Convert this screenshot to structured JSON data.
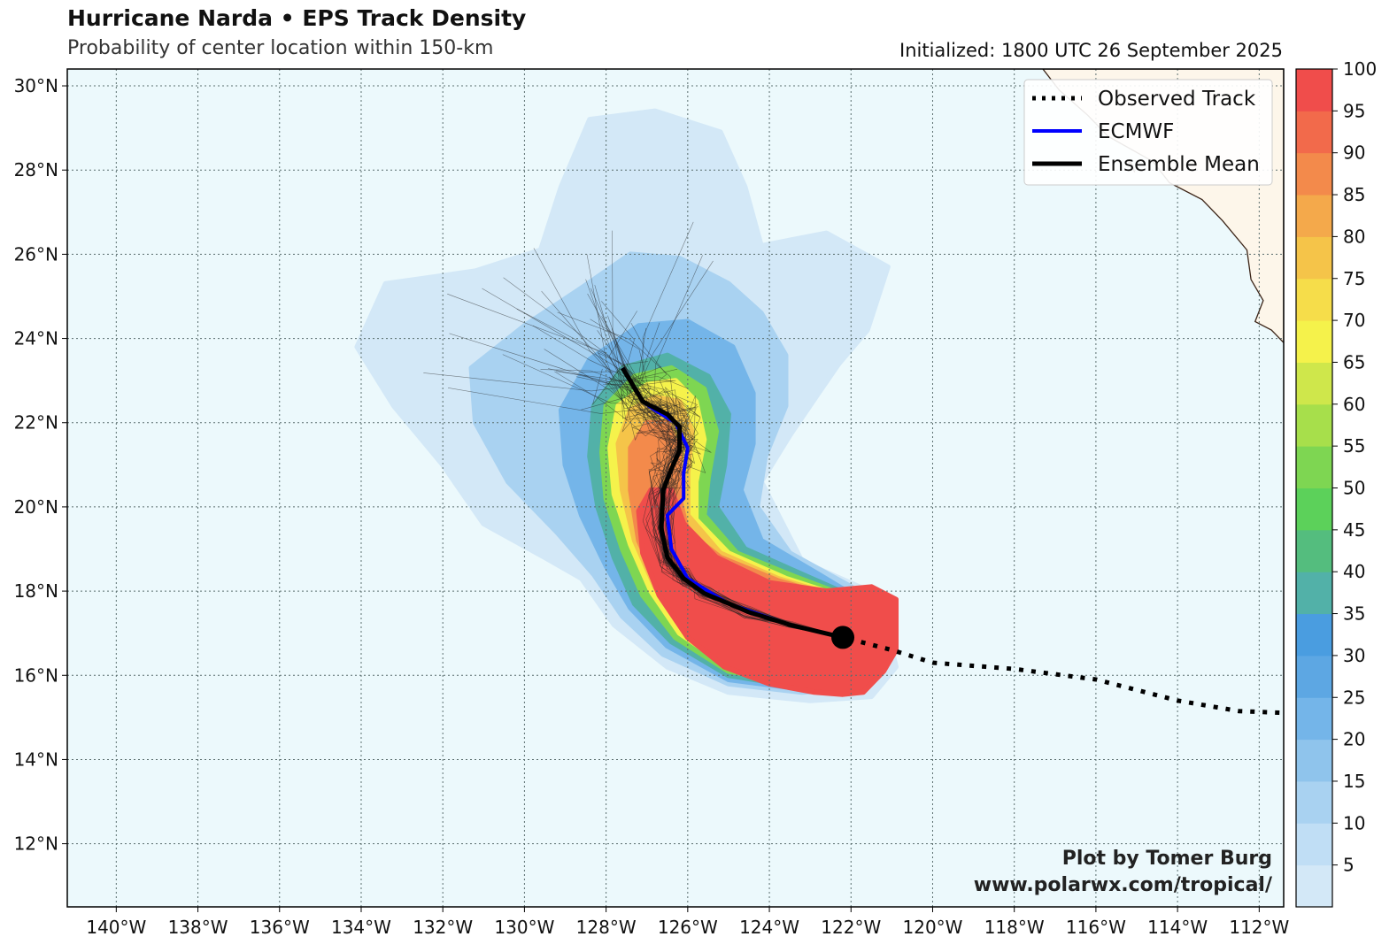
{
  "header": {
    "title": "Hurricane Narda • EPS Track Density",
    "subtitle": "Probability of center location within 150-km",
    "initialized": "Initialized: 1800 UTC 26 September 2025"
  },
  "map": {
    "lon_range": [
      -141.2,
      -111.4
    ],
    "lat_range": [
      10.5,
      30.4
    ],
    "lon_ticks": [
      {
        "v": -140,
        "label": "140°W"
      },
      {
        "v": -138,
        "label": "138°W"
      },
      {
        "v": -136,
        "label": "136°W"
      },
      {
        "v": -134,
        "label": "134°W"
      },
      {
        "v": -132,
        "label": "132°W"
      },
      {
        "v": -130,
        "label": "130°W"
      },
      {
        "v": -128,
        "label": "128°W"
      },
      {
        "v": -126,
        "label": "126°W"
      },
      {
        "v": -124,
        "label": "124°W"
      },
      {
        "v": -122,
        "label": "122°W"
      },
      {
        "v": -120,
        "label": "120°W"
      },
      {
        "v": -118,
        "label": "118°W"
      },
      {
        "v": -116,
        "label": "116°W"
      },
      {
        "v": -114,
        "label": "114°W"
      },
      {
        "v": -112,
        "label": "112°W"
      }
    ],
    "lat_ticks": [
      {
        "v": 12,
        "label": "12°N"
      },
      {
        "v": 14,
        "label": "14°N"
      },
      {
        "v": 16,
        "label": "16°N"
      },
      {
        "v": 18,
        "label": "18°N"
      },
      {
        "v": 20,
        "label": "20°N"
      },
      {
        "v": 22,
        "label": "22°N"
      },
      {
        "v": 24,
        "label": "24°N"
      },
      {
        "v": 26,
        "label": "26°N"
      },
      {
        "v": 28,
        "label": "28°N"
      },
      {
        "v": 30,
        "label": "30°N"
      }
    ],
    "ocean_color": "#ecf9fc",
    "land_color": "#fdf6ea"
  },
  "legend": {
    "items": [
      {
        "label": "Observed Track",
        "style": "dotted",
        "color": "#000000"
      },
      {
        "label": "ECMWF",
        "style": "solid",
        "color": "#0000ff"
      },
      {
        "label": "Ensemble Mean",
        "style": "solid",
        "color": "#000000"
      }
    ]
  },
  "colorbar": {
    "ticks": [
      "5",
      "10",
      "15",
      "20",
      "25",
      "30",
      "35",
      "40",
      "45",
      "50",
      "55",
      "60",
      "65",
      "70",
      "75",
      "80",
      "85",
      "90",
      "95",
      "100"
    ],
    "colors": [
      "#d3e8f7",
      "#c0def5",
      "#a9d2f1",
      "#8fc4ec",
      "#74b5e9",
      "#5da7e3",
      "#4a9de0",
      "#52b1a8",
      "#54bd7e",
      "#5cd15a",
      "#7ed652",
      "#a7df4b",
      "#cfe74b",
      "#f5f24b",
      "#f6dd4a",
      "#f5c449",
      "#f4a94b",
      "#f38a4b",
      "#f26a4b",
      "#f04d4b"
    ]
  },
  "tracks": {
    "observed": [
      [
        -111.2,
        15.1
      ],
      [
        -112.5,
        15.15
      ],
      [
        -114,
        15.4
      ],
      [
        -116,
        15.9
      ],
      [
        -118,
        16.15
      ],
      [
        -120,
        16.3
      ],
      [
        -121,
        16.6
      ],
      [
        -122.2,
        16.9
      ]
    ],
    "ecmwf": [
      [
        -122.2,
        16.9
      ],
      [
        -123.5,
        17.2
      ],
      [
        -125,
        17.7
      ],
      [
        -126,
        18.3
      ],
      [
        -126.4,
        19
      ],
      [
        -126.5,
        19.8
      ],
      [
        -126.1,
        20.2
      ],
      [
        -126.1,
        20.8
      ],
      [
        -126,
        21.4
      ],
      [
        -126.3,
        22
      ],
      [
        -126.8,
        22.3
      ],
      [
        -127.1,
        22.5
      ],
      [
        -127.6,
        23.3
      ]
    ],
    "ensemble_mean": [
      [
        -122.2,
        16.9
      ],
      [
        -123.5,
        17.2
      ],
      [
        -124.5,
        17.5
      ],
      [
        -125.6,
        17.95
      ],
      [
        -126.1,
        18.3
      ],
      [
        -126.5,
        18.8
      ],
      [
        -126.65,
        19.5
      ],
      [
        -126.6,
        20.4
      ],
      [
        -126.4,
        20.9
      ],
      [
        -126.2,
        21.35
      ],
      [
        -126.2,
        21.9
      ],
      [
        -126.5,
        22.2
      ],
      [
        -126.8,
        22.35
      ],
      [
        -127.1,
        22.5
      ],
      [
        -127.6,
        23.3
      ]
    ],
    "current_position": [
      -122.2,
      16.9
    ]
  },
  "density_layers": [
    {
      "level": 5,
      "color": "#d3e8f7",
      "points": [
        [
          -121,
          16.6
        ],
        [
          -120.9,
          16.2
        ],
        [
          -121.5,
          15.5
        ],
        [
          -123,
          15.4
        ],
        [
          -125,
          15.6
        ],
        [
          -126.5,
          16.2
        ],
        [
          -127.8,
          17.2
        ],
        [
          -128.6,
          18.3
        ],
        [
          -129.5,
          18.8
        ],
        [
          -131,
          19.6
        ],
        [
          -132,
          21
        ],
        [
          -133.2,
          22.4
        ],
        [
          -134.1,
          23.8
        ],
        [
          -133.4,
          25.3
        ],
        [
          -131.2,
          25.6
        ],
        [
          -129.6,
          26.1
        ],
        [
          -129.1,
          27.6
        ],
        [
          -128.4,
          29.2
        ],
        [
          -126.8,
          29.4
        ],
        [
          -125.2,
          28.9
        ],
        [
          -124.6,
          27.6
        ],
        [
          -124.2,
          26.2
        ],
        [
          -122.6,
          26.5
        ],
        [
          -121.1,
          25.7
        ],
        [
          -121.6,
          24.2
        ],
        [
          -122.3,
          23.4
        ],
        [
          -122.8,
          22.7
        ],
        [
          -123.5,
          21.7
        ],
        [
          -124.2,
          20.6
        ],
        [
          -123.2,
          18.7
        ],
        [
          -121.8,
          18.1
        ],
        [
          -120.9,
          17.8
        ]
      ]
    },
    {
      "level": 15,
      "color": "#a9d2f1",
      "points": [
        [
          -121.4,
          16.4
        ],
        [
          -121.8,
          15.7
        ],
        [
          -123.2,
          15.6
        ],
        [
          -125,
          15.8
        ],
        [
          -126.6,
          16.5
        ],
        [
          -127.6,
          17.4
        ],
        [
          -128.3,
          18.4
        ],
        [
          -129.2,
          19.4
        ],
        [
          -130.4,
          20.6
        ],
        [
          -131.2,
          22
        ],
        [
          -131.3,
          23.3
        ],
        [
          -130,
          24.3
        ],
        [
          -128.6,
          25.2
        ],
        [
          -127.4,
          26
        ],
        [
          -126.2,
          25.9
        ],
        [
          -125,
          25.3
        ],
        [
          -124.2,
          24.6
        ],
        [
          -123.6,
          23.6
        ],
        [
          -123.6,
          22.4
        ],
        [
          -124.1,
          21.2
        ],
        [
          -124.3,
          20
        ],
        [
          -123.5,
          18.9
        ],
        [
          -122,
          18.1
        ],
        [
          -121.3,
          17.5
        ]
      ]
    },
    {
      "level": 25,
      "color": "#74b5e9",
      "points": [
        [
          -121.6,
          16.4
        ],
        [
          -122.1,
          15.8
        ],
        [
          -123.4,
          15.7
        ],
        [
          -125,
          15.9
        ],
        [
          -126.5,
          16.7
        ],
        [
          -127.4,
          17.6
        ],
        [
          -128,
          18.6
        ],
        [
          -128.6,
          19.8
        ],
        [
          -129,
          21
        ],
        [
          -129.1,
          22.3
        ],
        [
          -128.4,
          23.5
        ],
        [
          -127.2,
          24.3
        ],
        [
          -126,
          24.4
        ],
        [
          -124.9,
          23.8
        ],
        [
          -124.4,
          22.7
        ],
        [
          -124.4,
          21.5
        ],
        [
          -124.7,
          20.4
        ],
        [
          -124.2,
          19.2
        ],
        [
          -122.8,
          18.4
        ],
        [
          -121.6,
          17.7
        ]
      ]
    },
    {
      "level": 35,
      "color": "#52b1a8",
      "points": [
        [
          -121.6,
          16.5
        ],
        [
          -122.1,
          15.8
        ],
        [
          -123.4,
          15.75
        ],
        [
          -125,
          16
        ],
        [
          -126.4,
          16.8
        ],
        [
          -127.3,
          17.7
        ],
        [
          -127.8,
          18.8
        ],
        [
          -128.2,
          20
        ],
        [
          -128.4,
          21.2
        ],
        [
          -128.3,
          22.4
        ],
        [
          -127.6,
          23.3
        ],
        [
          -126.5,
          23.6
        ],
        [
          -125.5,
          23.1
        ],
        [
          -125,
          22.2
        ],
        [
          -125.1,
          21
        ],
        [
          -125.3,
          20
        ],
        [
          -124.6,
          19
        ],
        [
          -123.2,
          18.4
        ],
        [
          -121.8,
          17.8
        ]
      ]
    },
    {
      "level": 50,
      "color": "#7ed652",
      "points": [
        [
          -121.7,
          16.5
        ],
        [
          -122.2,
          15.9
        ],
        [
          -123.5,
          15.85
        ],
        [
          -125,
          16.1
        ],
        [
          -126.3,
          16.9
        ],
        [
          -127.1,
          17.9
        ],
        [
          -127.6,
          19
        ],
        [
          -128,
          20.2
        ],
        [
          -128.1,
          21.3
        ],
        [
          -128,
          22.4
        ],
        [
          -127.3,
          23.1
        ],
        [
          -126.4,
          23.3
        ],
        [
          -125.6,
          22.8
        ],
        [
          -125.3,
          21.8
        ],
        [
          -125.5,
          20.7
        ],
        [
          -125.6,
          19.8
        ],
        [
          -124.8,
          18.9
        ],
        [
          -123.4,
          18.35
        ],
        [
          -121.9,
          17.8
        ]
      ]
    },
    {
      "level": 65,
      "color": "#f5f24b",
      "points": [
        [
          -121.8,
          16.5
        ],
        [
          -122.3,
          15.95
        ],
        [
          -123.5,
          15.9
        ],
        [
          -125,
          16.2
        ],
        [
          -126.2,
          17
        ],
        [
          -126.9,
          18
        ],
        [
          -127.4,
          19.1
        ],
        [
          -127.8,
          20.3
        ],
        [
          -127.9,
          21.4
        ],
        [
          -127.7,
          22.4
        ],
        [
          -127,
          22.9
        ],
        [
          -126.3,
          23
        ],
        [
          -125.8,
          22.5
        ],
        [
          -125.6,
          21.6
        ],
        [
          -125.8,
          20.6
        ],
        [
          -125.8,
          19.7
        ],
        [
          -125,
          18.9
        ],
        [
          -123.6,
          18.3
        ],
        [
          -122,
          17.8
        ]
      ]
    },
    {
      "level": 80,
      "color": "#f5c449",
      "points": [
        [
          -121.8,
          16.5
        ],
        [
          -122.3,
          16
        ],
        [
          -123.6,
          15.95
        ],
        [
          -125,
          16.25
        ],
        [
          -126.1,
          17.1
        ],
        [
          -126.8,
          18.1
        ],
        [
          -127.3,
          19.2
        ],
        [
          -127.6,
          20.4
        ],
        [
          -127.7,
          21.5
        ],
        [
          -127.4,
          22.3
        ],
        [
          -126.8,
          22.6
        ],
        [
          -126.2,
          22.5
        ],
        [
          -125.9,
          21.8
        ],
        [
          -126,
          20.8
        ],
        [
          -126,
          19.8
        ],
        [
          -125.2,
          18.9
        ],
        [
          -123.8,
          18.3
        ],
        [
          -122.1,
          17.8
        ]
      ]
    },
    {
      "level": 90,
      "color": "#f38a4b",
      "points": [
        [
          -121.8,
          16.5
        ],
        [
          -122.3,
          16
        ],
        [
          -123.6,
          16
        ],
        [
          -125,
          16.3
        ],
        [
          -126,
          17.1
        ],
        [
          -126.7,
          18.1
        ],
        [
          -127.2,
          19.2
        ],
        [
          -127.4,
          20.4
        ],
        [
          -127.4,
          21.4
        ],
        [
          -127,
          22
        ],
        [
          -126.5,
          22
        ],
        [
          -126.2,
          21.3
        ],
        [
          -126.2,
          20.2
        ],
        [
          -126,
          19.4
        ],
        [
          -125.2,
          18.8
        ],
        [
          -123.8,
          18.25
        ],
        [
          -122.2,
          17.8
        ]
      ]
    },
    {
      "level": 100,
      "color": "#f04d4b",
      "points": [
        [
          -120.9,
          17.8
        ],
        [
          -120.9,
          16.6
        ],
        [
          -121.2,
          16.1
        ],
        [
          -121.7,
          15.6
        ],
        [
          -122.2,
          15.55
        ],
        [
          -122.9,
          15.6
        ],
        [
          -124,
          15.8
        ],
        [
          -125.1,
          16.2
        ],
        [
          -126,
          16.9
        ],
        [
          -126.7,
          17.9
        ],
        [
          -127.1,
          18.9
        ],
        [
          -127.2,
          19.9
        ],
        [
          -126.9,
          20.4
        ],
        [
          -126.4,
          20.4
        ],
        [
          -126.1,
          19.6
        ],
        [
          -125.3,
          18.8
        ],
        [
          -124,
          18.2
        ],
        [
          -122.6,
          18
        ],
        [
          -121.5,
          18.1
        ]
      ]
    }
  ],
  "land": [
    [
      [
        -117.3,
        30.4
      ],
      [
        -116.9,
        29.9
      ],
      [
        -116.2,
        29.3
      ],
      [
        -115.7,
        28.8
      ],
      [
        -114.6,
        28.2
      ],
      [
        -114.2,
        27.7
      ],
      [
        -113.4,
        27.3
      ],
      [
        -112.9,
        26.8
      ],
      [
        -112.3,
        26.1
      ],
      [
        -112.2,
        25.4
      ],
      [
        -111.9,
        24.9
      ],
      [
        -112.1,
        24.4
      ],
      [
        -111.7,
        24.2
      ],
      [
        -111.4,
        23.9
      ],
      [
        -111.4,
        30.4
      ]
    ],
    [
      [
        -115.2,
        28.2
      ],
      [
        -115.1,
        28.05
      ],
      [
        -115.05,
        27.95
      ],
      [
        -115.15,
        28.2
      ]
    ]
  ],
  "credit": {
    "line1": "Plot by Tomer Burg",
    "line2": "www.polarwx.com/tropical/"
  }
}
